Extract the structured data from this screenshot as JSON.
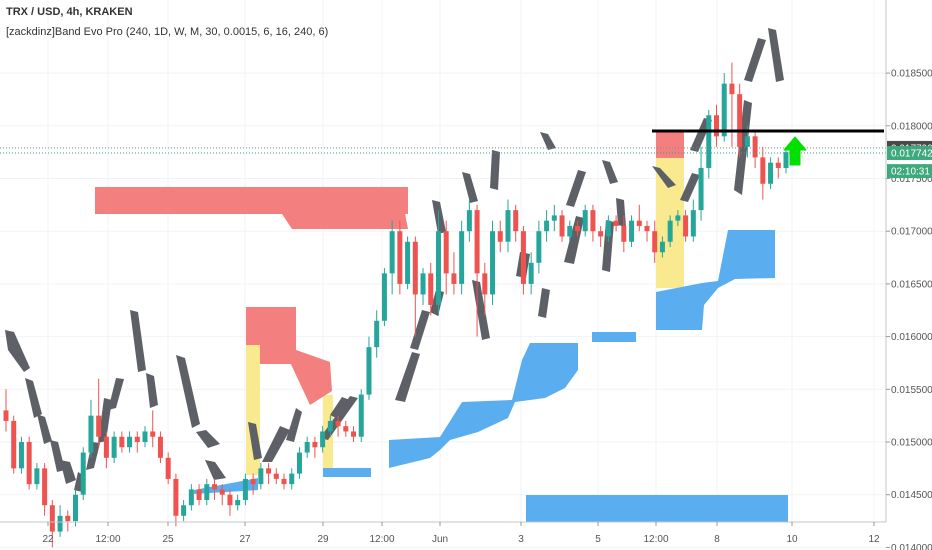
{
  "header": {
    "symbol_line": "TRX / USD, 4h, KRAKEN",
    "indicator_line": "[zackdinz]Band Evo Pro (240, 1D, W, M, 30, 0.0015, 6, 16, 240, 6)"
  },
  "colors": {
    "up": "#26a69a",
    "down": "#ef5350",
    "ribbon": "#5d6066",
    "red_zone": "#f47f7f",
    "yellow_zone": "#faea8f",
    "blue_zone": "#5aaef0",
    "arrow": "#00e000",
    "line": "#000000"
  },
  "chart_data": {
    "type": "candlestick",
    "title": "TRX / USD, 4h, KRAKEN",
    "ylim": [
      0.01385,
      0.01865
    ],
    "y_ticks": [
      "0.018500",
      "0.018000",
      "0.017500",
      "0.017000",
      "0.016500",
      "0.016000",
      "0.015500",
      "0.015000",
      "0.014500",
      "0.014000"
    ],
    "x_ticks": [
      "22",
      "12:00",
      "25",
      "27",
      "29",
      "12:00",
      "Jun",
      "3",
      "5",
      "12:00",
      "8",
      "10",
      "12"
    ],
    "price_labels": [
      {
        "text": "0.017790",
        "value": 0.01779,
        "style": "dark"
      },
      {
        "text": "0.017742",
        "value": 0.017742,
        "style": "green"
      },
      {
        "text": "02:10:31",
        "value": 0.01757,
        "style": "green"
      }
    ],
    "candles": [
      [
        0.0153,
        0.0152,
        0.0151,
        0.0155
      ],
      [
        0.0152,
        0.01475,
        0.0147,
        0.01525
      ],
      [
        0.01475,
        0.015,
        0.0147,
        0.01505
      ],
      [
        0.015,
        0.0146,
        0.01455,
        0.01505
      ],
      [
        0.0146,
        0.01475,
        0.01455,
        0.0148
      ],
      [
        0.01475,
        0.0144,
        0.0143,
        0.0148
      ],
      [
        0.0144,
        0.01415,
        0.014,
        0.01445
      ],
      [
        0.01415,
        0.0143,
        0.0141,
        0.0144
      ],
      [
        0.0143,
        0.01425,
        0.01415,
        0.01435
      ],
      [
        0.01425,
        0.0145,
        0.0142,
        0.01455
      ],
      [
        0.0145,
        0.0149,
        0.01445,
        0.01495
      ],
      [
        0.0149,
        0.01525,
        0.01485,
        0.0154
      ],
      [
        0.01525,
        0.01505,
        0.01495,
        0.0156
      ],
      [
        0.01505,
        0.01485,
        0.01475,
        0.0151
      ],
      [
        0.01485,
        0.01505,
        0.0148,
        0.0151
      ],
      [
        0.01505,
        0.01495,
        0.0149,
        0.0151
      ],
      [
        0.01495,
        0.01505,
        0.0149,
        0.0151
      ],
      [
        0.01505,
        0.015,
        0.0149,
        0.0151
      ],
      [
        0.015,
        0.0151,
        0.01495,
        0.01515
      ],
      [
        0.0151,
        0.01505,
        0.01495,
        0.0153
      ],
      [
        0.01505,
        0.01485,
        0.0148,
        0.0151
      ],
      [
        0.01485,
        0.01465,
        0.0146,
        0.0149
      ],
      [
        0.01465,
        0.0143,
        0.0142,
        0.0147
      ],
      [
        0.0143,
        0.0144,
        0.01425,
        0.01445
      ],
      [
        0.0144,
        0.01455,
        0.01435,
        0.0146
      ],
      [
        0.01455,
        0.01445,
        0.0144,
        0.0146
      ],
      [
        0.01445,
        0.0146,
        0.0144,
        0.01465
      ],
      [
        0.0146,
        0.01455,
        0.01445,
        0.01465
      ],
      [
        0.01455,
        0.0145,
        0.0144,
        0.0146
      ],
      [
        0.0145,
        0.0144,
        0.0143,
        0.01455
      ],
      [
        0.0144,
        0.01445,
        0.01435,
        0.0145
      ],
      [
        0.01445,
        0.01465,
        0.0144,
        0.0147
      ],
      [
        0.01465,
        0.0146,
        0.0145,
        0.0147
      ],
      [
        0.0146,
        0.01475,
        0.01455,
        0.0148
      ],
      [
        0.01475,
        0.0147,
        0.0146,
        0.0148
      ],
      [
        0.0147,
        0.01465,
        0.0146,
        0.01475
      ],
      [
        0.01465,
        0.0146,
        0.01455,
        0.0147
      ],
      [
        0.0146,
        0.0147,
        0.01455,
        0.01475
      ],
      [
        0.0147,
        0.0149,
        0.01465,
        0.01495
      ],
      [
        0.0149,
        0.015,
        0.01485,
        0.01505
      ],
      [
        0.015,
        0.01495,
        0.01485,
        0.01505
      ],
      [
        0.01495,
        0.0151,
        0.0149,
        0.01515
      ],
      [
        0.0151,
        0.0152,
        0.01505,
        0.01525
      ],
      [
        0.0152,
        0.01515,
        0.01505,
        0.01525
      ],
      [
        0.01515,
        0.0151,
        0.01505,
        0.0152
      ],
      [
        0.0151,
        0.01505,
        0.015,
        0.01515
      ],
      [
        0.01505,
        0.01545,
        0.015,
        0.0155
      ],
      [
        0.01545,
        0.0159,
        0.0154,
        0.016
      ],
      [
        0.0159,
        0.01615,
        0.0158,
        0.01625
      ],
      [
        0.01615,
        0.0166,
        0.0161,
        0.01665
      ],
      [
        0.0166,
        0.017,
        0.0164,
        0.0171
      ],
      [
        0.017,
        0.0165,
        0.0164,
        0.0171
      ],
      [
        0.0165,
        0.0169,
        0.01645,
        0.01695
      ],
      [
        0.0169,
        0.0164,
        0.016,
        0.01695
      ],
      [
        0.0164,
        0.0166,
        0.0163,
        0.01665
      ],
      [
        0.0166,
        0.0163,
        0.0162,
        0.0167
      ],
      [
        0.0163,
        0.017,
        0.0162,
        0.0172
      ],
      [
        0.017,
        0.0166,
        0.0164,
        0.0171
      ],
      [
        0.0166,
        0.0165,
        0.0164,
        0.0168
      ],
      [
        0.0165,
        0.017,
        0.0164,
        0.0171
      ],
      [
        0.017,
        0.0172,
        0.0169,
        0.0173
      ],
      [
        0.0172,
        0.0166,
        0.016,
        0.01725
      ],
      [
        0.0166,
        0.0164,
        0.0162,
        0.0167
      ],
      [
        0.0164,
        0.017,
        0.0163,
        0.0171
      ],
      [
        0.017,
        0.0169,
        0.0168,
        0.0171
      ],
      [
        0.0169,
        0.0172,
        0.0168,
        0.0173
      ],
      [
        0.0172,
        0.017,
        0.0169,
        0.01725
      ],
      [
        0.017,
        0.0165,
        0.0164,
        0.01705
      ],
      [
        0.0165,
        0.0167,
        0.0164,
        0.0168
      ],
      [
        0.0167,
        0.017,
        0.0166,
        0.0171
      ],
      [
        0.017,
        0.0171,
        0.0169,
        0.0172
      ],
      [
        0.0171,
        0.01715,
        0.017,
        0.01725
      ],
      [
        0.01715,
        0.01695,
        0.0169,
        0.0172
      ],
      [
        0.01695,
        0.01705,
        0.0169,
        0.0171
      ],
      [
        0.01705,
        0.017,
        0.01695,
        0.0171
      ],
      [
        0.017,
        0.0172,
        0.01695,
        0.01725
      ],
      [
        0.0172,
        0.017,
        0.0169,
        0.01725
      ],
      [
        0.017,
        0.01695,
        0.01685,
        0.01705
      ],
      [
        0.01695,
        0.0171,
        0.0169,
        0.01715
      ],
      [
        0.0171,
        0.01705,
        0.017,
        0.01715
      ],
      [
        0.01705,
        0.0169,
        0.0168,
        0.01715
      ],
      [
        0.0169,
        0.0171,
        0.01685,
        0.01715
      ],
      [
        0.0171,
        0.01705,
        0.017,
        0.01725
      ],
      [
        0.01705,
        0.017,
        0.0169,
        0.0171
      ],
      [
        0.017,
        0.0168,
        0.0167,
        0.0171
      ],
      [
        0.0168,
        0.0169,
        0.01675,
        0.01695
      ],
      [
        0.0169,
        0.0171,
        0.01685,
        0.01715
      ],
      [
        0.0171,
        0.01715,
        0.01705,
        0.0172
      ],
      [
        0.01715,
        0.01695,
        0.0169,
        0.0172
      ],
      [
        0.01695,
        0.0172,
        0.0169,
        0.0173
      ],
      [
        0.0172,
        0.0176,
        0.0171,
        0.0178
      ],
      [
        0.0176,
        0.0181,
        0.0175,
        0.01815
      ],
      [
        0.0181,
        0.0179,
        0.0178,
        0.0182
      ],
      [
        0.0179,
        0.0184,
        0.01785,
        0.0185
      ],
      [
        0.0184,
        0.0183,
        0.0178,
        0.0186
      ],
      [
        0.0183,
        0.0178,
        0.0177,
        0.0184
      ],
      [
        0.0178,
        0.0179,
        0.0177,
        0.018
      ],
      [
        0.0179,
        0.0177,
        0.0176,
        0.01795
      ],
      [
        0.0177,
        0.01745,
        0.0173,
        0.0178
      ],
      [
        0.01745,
        0.01765,
        0.0174,
        0.0177
      ],
      [
        0.01765,
        0.0176,
        0.0175,
        0.0177
      ],
      [
        0.0176,
        0.01775,
        0.01755,
        0.0178
      ]
    ]
  }
}
